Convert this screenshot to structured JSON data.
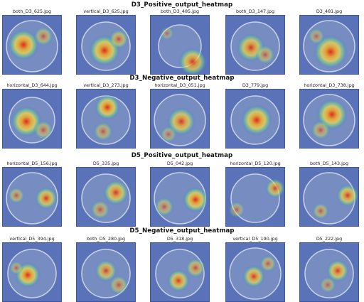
{
  "sections": [
    {
      "title": "D3_Positive_output_heatmap",
      "images": [
        {
          "filename": "both_D3_625.jpg"
        },
        {
          "filename": "vertical_D3_625.jpg"
        },
        {
          "filename": "both_D3_485.jpg"
        },
        {
          "filename": "both_D3_147.jpg"
        },
        {
          "filename": "D3_481.jpg"
        }
      ]
    },
    {
      "title": "D3_Negative_output_heatmap",
      "images": [
        {
          "filename": "horizontal_D3_644.jpg"
        },
        {
          "filename": "vertical_D3_273.jpg"
        },
        {
          "filename": "horizontal_D3_051.jpg"
        },
        {
          "filename": "D3_779.jpg"
        },
        {
          "filename": "horizontal_D3_738.jpg"
        }
      ]
    },
    {
      "title": "D5_Positive_output_heatmap",
      "images": [
        {
          "filename": "horizontal_D5_156.jpg"
        },
        {
          "filename": "D5_335.jpg"
        },
        {
          "filename": "D5_042.jpg"
        },
        {
          "filename": "horizontal_D5_120.jpg"
        },
        {
          "filename": "both_D5_143.jpg"
        }
      ]
    },
    {
      "title": "D5_Negative_output_heatmap",
      "images": [
        {
          "filename": "vertical_D5_394.jpg"
        },
        {
          "filename": "both_D5_280.jpg"
        },
        {
          "filename": "D5_318.jpg"
        },
        {
          "filename": "vertical_D5_190.jpg"
        },
        {
          "filename": "D5_222.jpg"
        }
      ]
    }
  ]
}
